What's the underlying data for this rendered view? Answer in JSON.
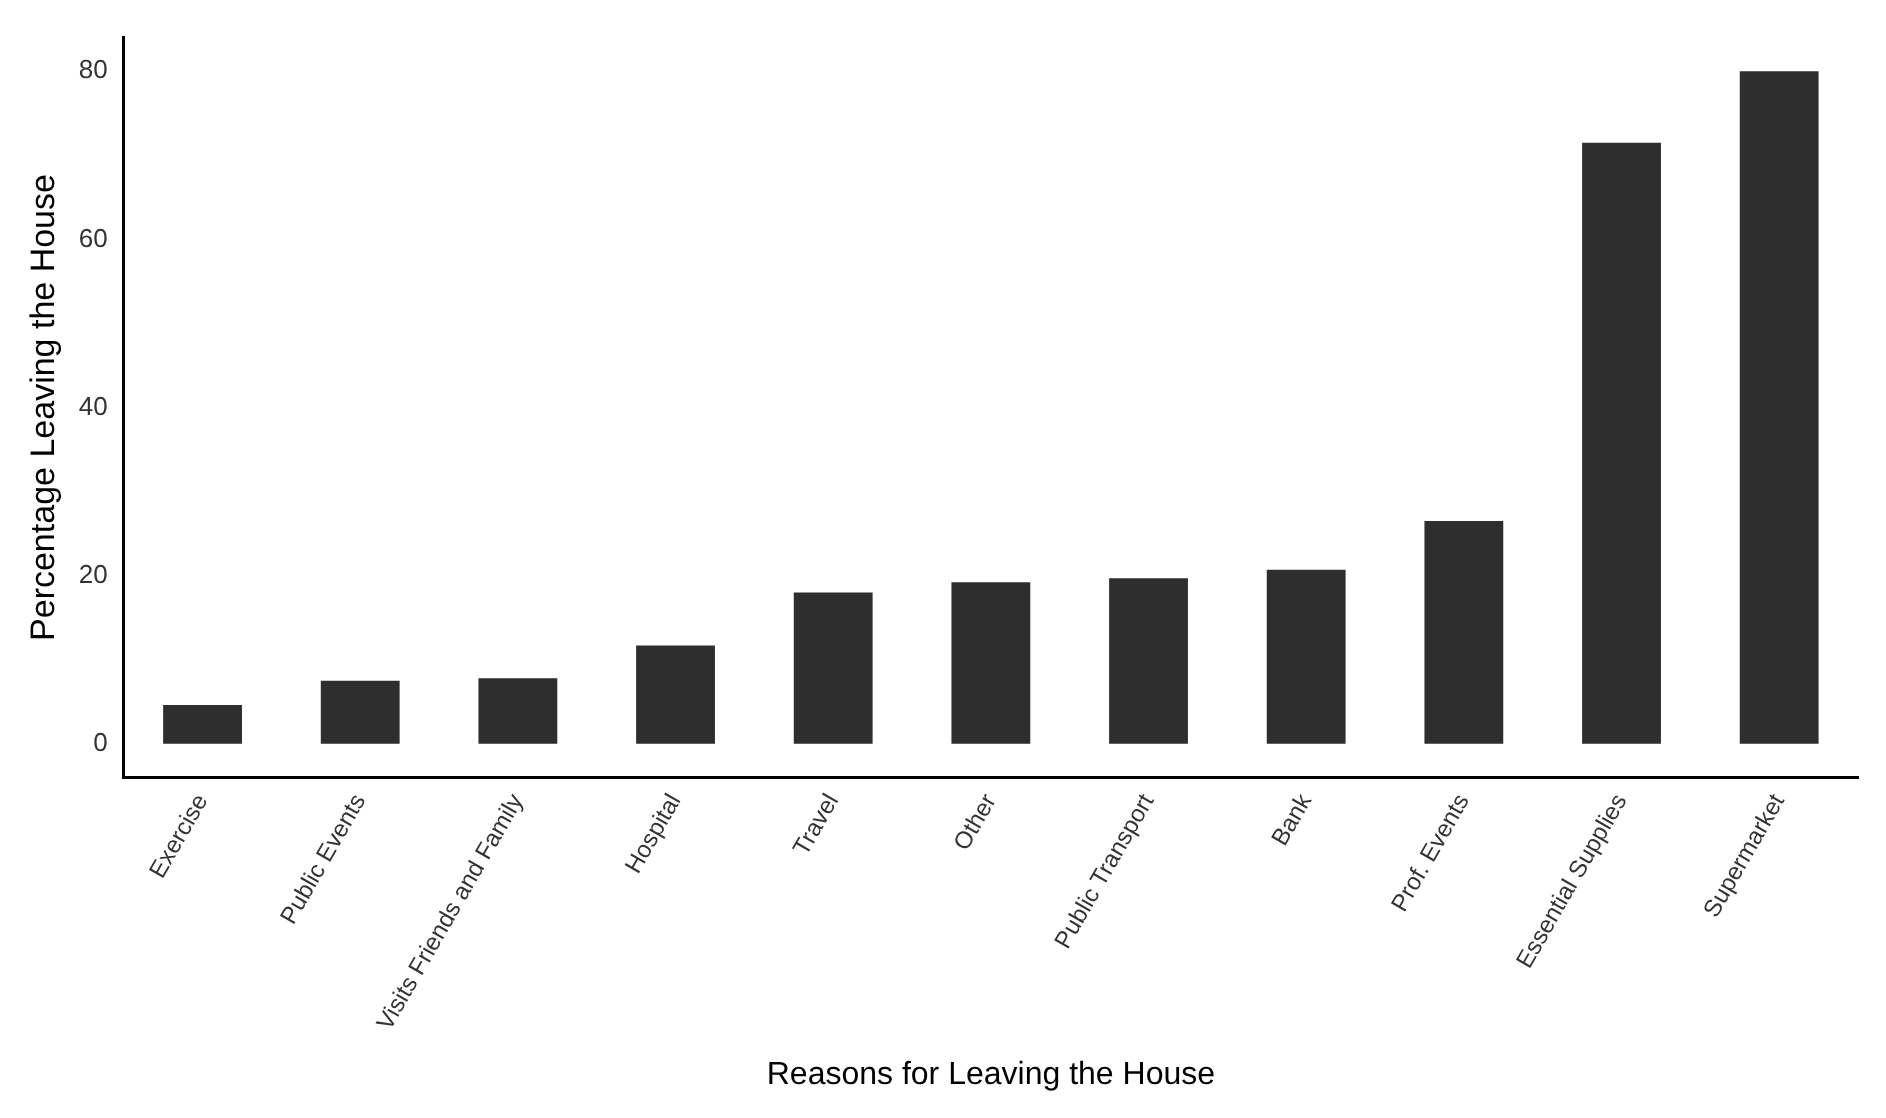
{
  "chart_data": {
    "type": "bar",
    "xlabel": "Reasons for Leaving the House",
    "ylabel": "Percentage Leaving the House",
    "categories": [
      "Exercise",
      "Public Events",
      "Visits Friends and Family",
      "Hospital",
      "Travel",
      "Other",
      "Public Transport",
      "Bank",
      "Prof. Events",
      "Essential Supplies",
      "Supermarket"
    ],
    "values": [
      4.6,
      7.5,
      7.8,
      11.7,
      18,
      19.2,
      19.7,
      20.7,
      26.5,
      71.5,
      80
    ],
    "color": "#2e2e2e",
    "ylim": [
      -4,
      84
    ],
    "yticks": [
      0,
      20,
      40,
      60,
      80
    ],
    "grid": false,
    "legend": false
  }
}
